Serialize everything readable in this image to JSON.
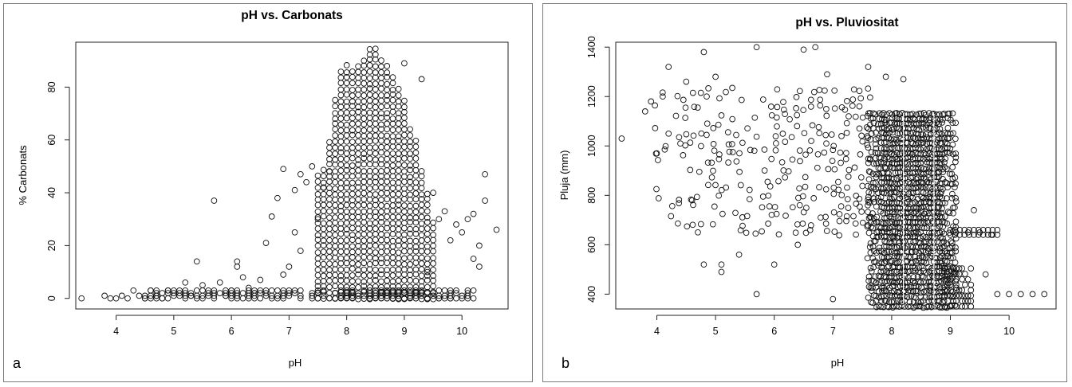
{
  "chart_data": [
    {
      "type": "scatter",
      "panel_label": "a",
      "title": "pH vs. Carbonats",
      "xlabel": "pH",
      "ylabel": "% Carbonats",
      "xlim": [
        3.3,
        10.8
      ],
      "ylim": [
        -4,
        97
      ],
      "xticks": [
        4,
        5,
        6,
        7,
        8,
        9,
        10
      ],
      "yticks": [
        0,
        20,
        40,
        60,
        80
      ],
      "marker": "open-circle",
      "color": "#111111",
      "points": [
        [
          3.4,
          0
        ],
        [
          3.8,
          1
        ],
        [
          3.9,
          0
        ],
        [
          4.0,
          0
        ],
        [
          4.1,
          1
        ],
        [
          4.2,
          0
        ],
        [
          4.3,
          3
        ],
        [
          4.4,
          1
        ],
        [
          4.5,
          0
        ],
        [
          4.6,
          3
        ],
        [
          4.7,
          1
        ],
        [
          4.8,
          0
        ],
        [
          4.9,
          3
        ],
        [
          5.0,
          1
        ],
        [
          5.1,
          3
        ],
        [
          5.2,
          6
        ],
        [
          5.3,
          1
        ],
        [
          5.4,
          14
        ],
        [
          5.5,
          5
        ],
        [
          5.6,
          3
        ],
        [
          5.7,
          37
        ],
        [
          5.8,
          6
        ],
        [
          5.9,
          1
        ],
        [
          6.0,
          3
        ],
        [
          6.1,
          14
        ],
        [
          6.1,
          12
        ],
        [
          6.2,
          8
        ],
        [
          6.3,
          4
        ],
        [
          6.4,
          2
        ],
        [
          6.5,
          7
        ],
        [
          6.6,
          21
        ],
        [
          6.7,
          31
        ],
        [
          6.8,
          38
        ],
        [
          6.9,
          9
        ],
        [
          6.9,
          49
        ],
        [
          7.0,
          12
        ],
        [
          7.1,
          25
        ],
        [
          7.1,
          41
        ],
        [
          7.2,
          18
        ],
        [
          7.2,
          47
        ],
        [
          7.3,
          44
        ],
        [
          7.4,
          50
        ],
        [
          7.5,
          30
        ],
        [
          7.6,
          42
        ],
        [
          7.7,
          48
        ],
        [
          9.3,
          83
        ],
        [
          9.0,
          89
        ],
        [
          9.5,
          40
        ],
        [
          9.6,
          30
        ],
        [
          9.7,
          33
        ],
        [
          9.8,
          22
        ],
        [
          9.9,
          28
        ],
        [
          10.0,
          25
        ],
        [
          10.1,
          30
        ],
        [
          10.2,
          32
        ],
        [
          10.3,
          12
        ],
        [
          10.3,
          20
        ],
        [
          10.4,
          37
        ],
        [
          10.4,
          47
        ],
        [
          10.6,
          26
        ],
        [
          9.4,
          10
        ],
        [
          9.6,
          0
        ],
        [
          9.8,
          0
        ],
        [
          10.2,
          15
        ],
        [
          9.4,
          0
        ],
        [
          9.7,
          0
        ]
      ],
      "dense_band": {
        "x_from": 7.5,
        "x_to": 9.5,
        "x_step": 0.1,
        "y_step": 2.2,
        "upper_envelope": [
          [
            7.5,
            48
          ],
          [
            7.6,
            50
          ],
          [
            7.7,
            60
          ],
          [
            7.8,
            75
          ],
          [
            7.9,
            88
          ],
          [
            8.0,
            90
          ],
          [
            8.1,
            88
          ],
          [
            8.2,
            90
          ],
          [
            8.3,
            92
          ],
          [
            8.4,
            95
          ],
          [
            8.5,
            95
          ],
          [
            8.6,
            92
          ],
          [
            8.7,
            88
          ],
          [
            8.8,
            85
          ],
          [
            8.9,
            80
          ],
          [
            9.0,
            75
          ],
          [
            9.1,
            65
          ],
          [
            9.2,
            60
          ],
          [
            9.3,
            50
          ],
          [
            9.4,
            40
          ],
          [
            9.5,
            30
          ]
        ]
      },
      "low_band": {
        "x_from": 4.5,
        "x_to": 10.2,
        "x_step": 0.1,
        "y_values": [
          0,
          1,
          2,
          3
        ]
      }
    },
    {
      "type": "scatter",
      "panel_label": "b",
      "title": "pH vs. Pluviositat",
      "xlabel": "pH",
      "ylabel": "Pluja (mm)",
      "xlim": [
        3.3,
        10.8
      ],
      "ylim": [
        340,
        1420
      ],
      "xticks": [
        4,
        5,
        6,
        7,
        8,
        9,
        10
      ],
      "yticks": [
        400,
        600,
        800,
        1000,
        1200,
        1400
      ],
      "marker": "open-circle",
      "color": "#111111",
      "points": [
        [
          3.4,
          1030
        ],
        [
          3.8,
          1140
        ],
        [
          3.9,
          1180
        ],
        [
          4.0,
          970
        ],
        [
          4.1,
          1200
        ],
        [
          4.2,
          1320
        ],
        [
          4.2,
          1050
        ],
        [
          4.4,
          1010
        ],
        [
          4.5,
          1260
        ],
        [
          4.6,
          780
        ],
        [
          4.7,
          650
        ],
        [
          4.8,
          1380
        ],
        [
          4.8,
          520
        ],
        [
          5.0,
          1280
        ],
        [
          5.1,
          520
        ],
        [
          5.1,
          490
        ],
        [
          5.7,
          400
        ],
        [
          5.7,
          1400
        ],
        [
          6.5,
          1390
        ],
        [
          6.7,
          1400
        ],
        [
          6.9,
          1290
        ],
        [
          7.6,
          1320
        ],
        [
          7.9,
          1280
        ],
        [
          8.2,
          1270
        ],
        [
          10.0,
          400
        ],
        [
          10.2,
          400
        ],
        [
          10.4,
          400
        ],
        [
          10.6,
          400
        ],
        [
          9.3,
          650
        ],
        [
          9.5,
          650
        ],
        [
          9.7,
          640
        ],
        [
          9.4,
          740
        ],
        [
          9.6,
          480
        ],
        [
          9.8,
          400
        ],
        [
          7.0,
          380
        ],
        [
          6.0,
          520
        ],
        [
          5.4,
          560
        ],
        [
          6.4,
          600
        ]
      ],
      "sparse_region": {
        "x_from": 4.0,
        "x_to": 7.6,
        "x_step": 0.12,
        "y_from": 650,
        "y_to": 1260,
        "y_step": 36
      },
      "dense_region": {
        "x_from": 7.6,
        "x_to": 9.1,
        "x_step": 0.045,
        "y_from": 350,
        "y_to": 1130,
        "y_step": 20
      },
      "light_seams_x": [
        8.2,
        8.72
      ]
    }
  ]
}
